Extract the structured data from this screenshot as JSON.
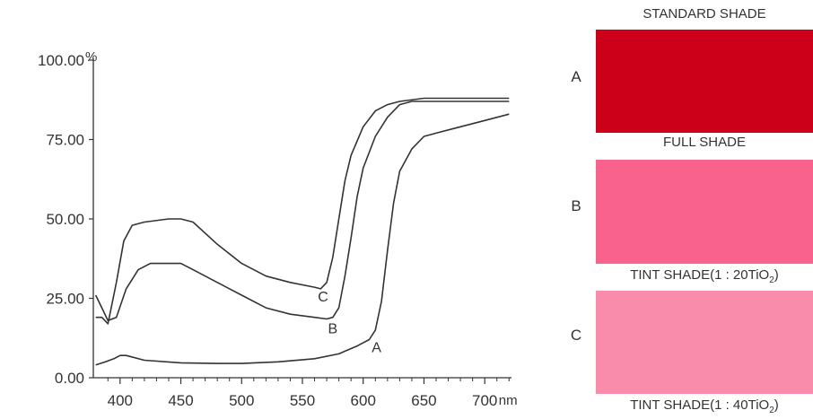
{
  "chart_data": {
    "type": "line",
    "x_unit": "nm",
    "y_unit": "%",
    "xlim": [
      378,
      722
    ],
    "ylim": [
      0,
      100
    ],
    "x_ticks": [
      400,
      450,
      500,
      550,
      600,
      650,
      700
    ],
    "x_tick_labels": [
      "400",
      "450",
      "500",
      "550",
      "600",
      "650",
      "700"
    ],
    "y_ticks": [
      0,
      25,
      50,
      75,
      100
    ],
    "y_tick_labels": [
      "0.00",
      "25.00",
      "50.00",
      "75.00",
      "100.00"
    ],
    "grid": false,
    "legend": "none",
    "series": [
      {
        "name": "A",
        "color": "#333333",
        "x": [
          380,
          388,
          395,
          400,
          405,
          420,
          450,
          480,
          500,
          530,
          560,
          580,
          595,
          605,
          610,
          615,
          620,
          625,
          630,
          640,
          650,
          660,
          680,
          700,
          720
        ],
        "y": [
          4,
          5,
          6,
          7,
          7,
          5.5,
          4.7,
          4.5,
          4.5,
          5,
          6,
          7.5,
          10,
          12,
          15,
          24,
          40,
          55,
          65,
          72,
          76,
          77,
          79,
          81,
          83
        ]
      },
      {
        "name": "B",
        "color": "#333333",
        "x": [
          380,
          385,
          390,
          397,
          405,
          415,
          425,
          440,
          450,
          460,
          480,
          500,
          520,
          540,
          560,
          570,
          575,
          580,
          585,
          590,
          595,
          600,
          610,
          620,
          630,
          640,
          650,
          700,
          720
        ],
        "y": [
          26,
          22,
          18,
          19,
          28,
          34,
          36,
          36,
          36,
          34,
          30,
          26,
          22,
          20,
          19,
          18.5,
          19,
          22,
          32,
          44,
          57,
          66,
          76,
          82,
          86,
          87,
          87,
          87,
          87
        ]
      },
      {
        "name": "C",
        "color": "#333333",
        "x": [
          380,
          385,
          390,
          397,
          403,
          410,
          420,
          440,
          450,
          460,
          480,
          500,
          520,
          540,
          560,
          565,
          570,
          575,
          580,
          585,
          590,
          600,
          610,
          620,
          630,
          650,
          700,
          720
        ],
        "y": [
          19,
          19,
          17,
          30,
          43,
          48,
          49,
          50,
          50,
          49,
          42,
          36,
          32,
          30,
          28.5,
          28,
          30,
          38,
          50,
          62,
          70,
          79,
          84,
          86,
          87,
          88,
          88,
          88
        ]
      }
    ],
    "annotations": [
      {
        "text": "A",
        "x": 611,
        "y": 8
      },
      {
        "text": "B",
        "x": 575,
        "y": 14
      },
      {
        "text": "C",
        "x": 567,
        "y": 24
      }
    ]
  },
  "unit_y": "%",
  "unit_x": "nm",
  "panels": [
    {
      "letter": "A",
      "caption_prefix": "STANDARD SHADE",
      "caption_sub": "",
      "caption_suffix": "",
      "color": "#cc0018"
    },
    {
      "letter": "B",
      "caption_prefix": "FULL SHADE",
      "caption_sub": "",
      "caption_suffix": "",
      "color": "#f8628c"
    },
    {
      "letter": "C",
      "caption_prefix": "TINT SHADE(1 : 20TiO",
      "caption_sub": "2",
      "caption_suffix": ")",
      "color": "#f98cab"
    }
  ],
  "bottom_caption": {
    "prefix": "TINT SHADE(1 : 40TiO",
    "sub": "2",
    "suffix": ")"
  }
}
